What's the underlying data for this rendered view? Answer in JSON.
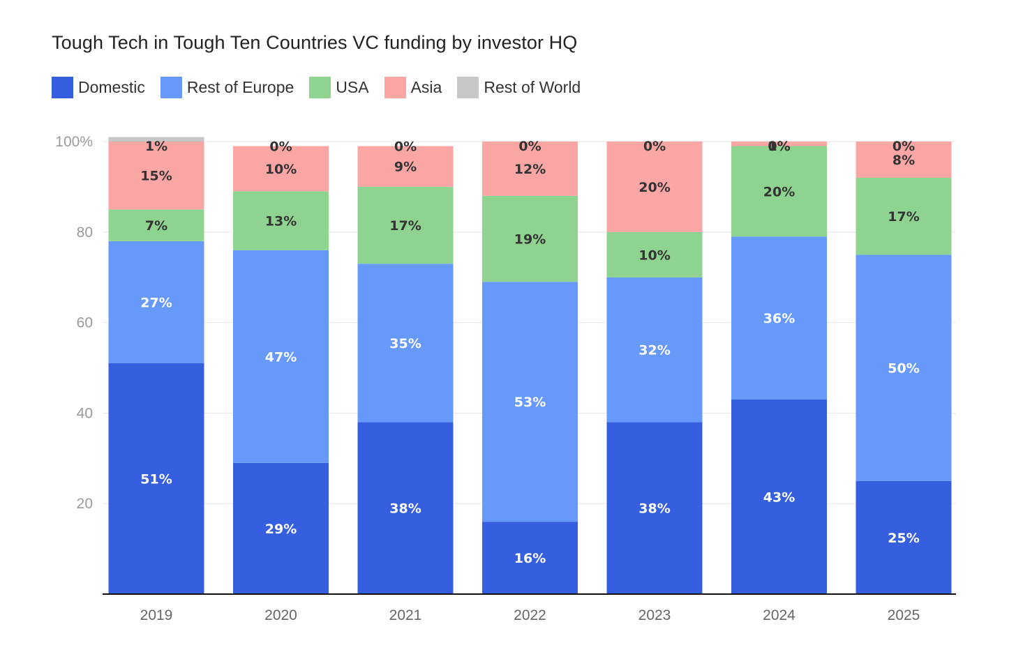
{
  "chart_data": {
    "type": "bar",
    "stacked": true,
    "title": "Tough Tech in Tough Ten Countries VC funding by investor HQ",
    "xlabel": "",
    "ylabel": "",
    "ylim": [
      0,
      100
    ],
    "y_ticks": [
      "20",
      "40",
      "60",
      "80",
      "100%"
    ],
    "y_tick_values": [
      20,
      40,
      60,
      80,
      100
    ],
    "categories": [
      "2019",
      "2020",
      "2021",
      "2022",
      "2023",
      "2024",
      "2025"
    ],
    "legend_position": "top-left",
    "grid": true,
    "series": [
      {
        "name": "Domestic",
        "color": "#355fde",
        "label_color": "#ffffff",
        "values": [
          51,
          29,
          38,
          16,
          38,
          43,
          25
        ],
        "labels": [
          "51%",
          "29%",
          "38%",
          "16%",
          "38%",
          "43%",
          "25%"
        ]
      },
      {
        "name": "Rest of Europe",
        "color": "#6699fa",
        "label_color": "#ffffff",
        "values": [
          27,
          47,
          35,
          53,
          32,
          36,
          50
        ],
        "labels": [
          "27%",
          "47%",
          "35%",
          "53%",
          "32%",
          "36%",
          "50%"
        ]
      },
      {
        "name": "USA",
        "color": "#8ed490",
        "label_color": "#333333",
        "values": [
          7,
          13,
          17,
          19,
          10,
          20,
          17
        ],
        "labels": [
          "7%",
          "13%",
          "17%",
          "19%",
          "10%",
          "20%",
          "17%"
        ]
      },
      {
        "name": "Asia",
        "color": "#faa6a5",
        "label_color": "#333333",
        "values": [
          15,
          10,
          9,
          12,
          20,
          1,
          8
        ],
        "labels": [
          "15%",
          "10%",
          "9%",
          "12%",
          "20%",
          "1%",
          "8%"
        ]
      },
      {
        "name": "Rest of World",
        "color": "#c7c7c7",
        "label_color": "#333333",
        "values": [
          1,
          0,
          0,
          0,
          0,
          0,
          0
        ],
        "labels": [
          "1%",
          "0%",
          "0%",
          "0%",
          "0%",
          "0%",
          "0%"
        ]
      }
    ]
  }
}
